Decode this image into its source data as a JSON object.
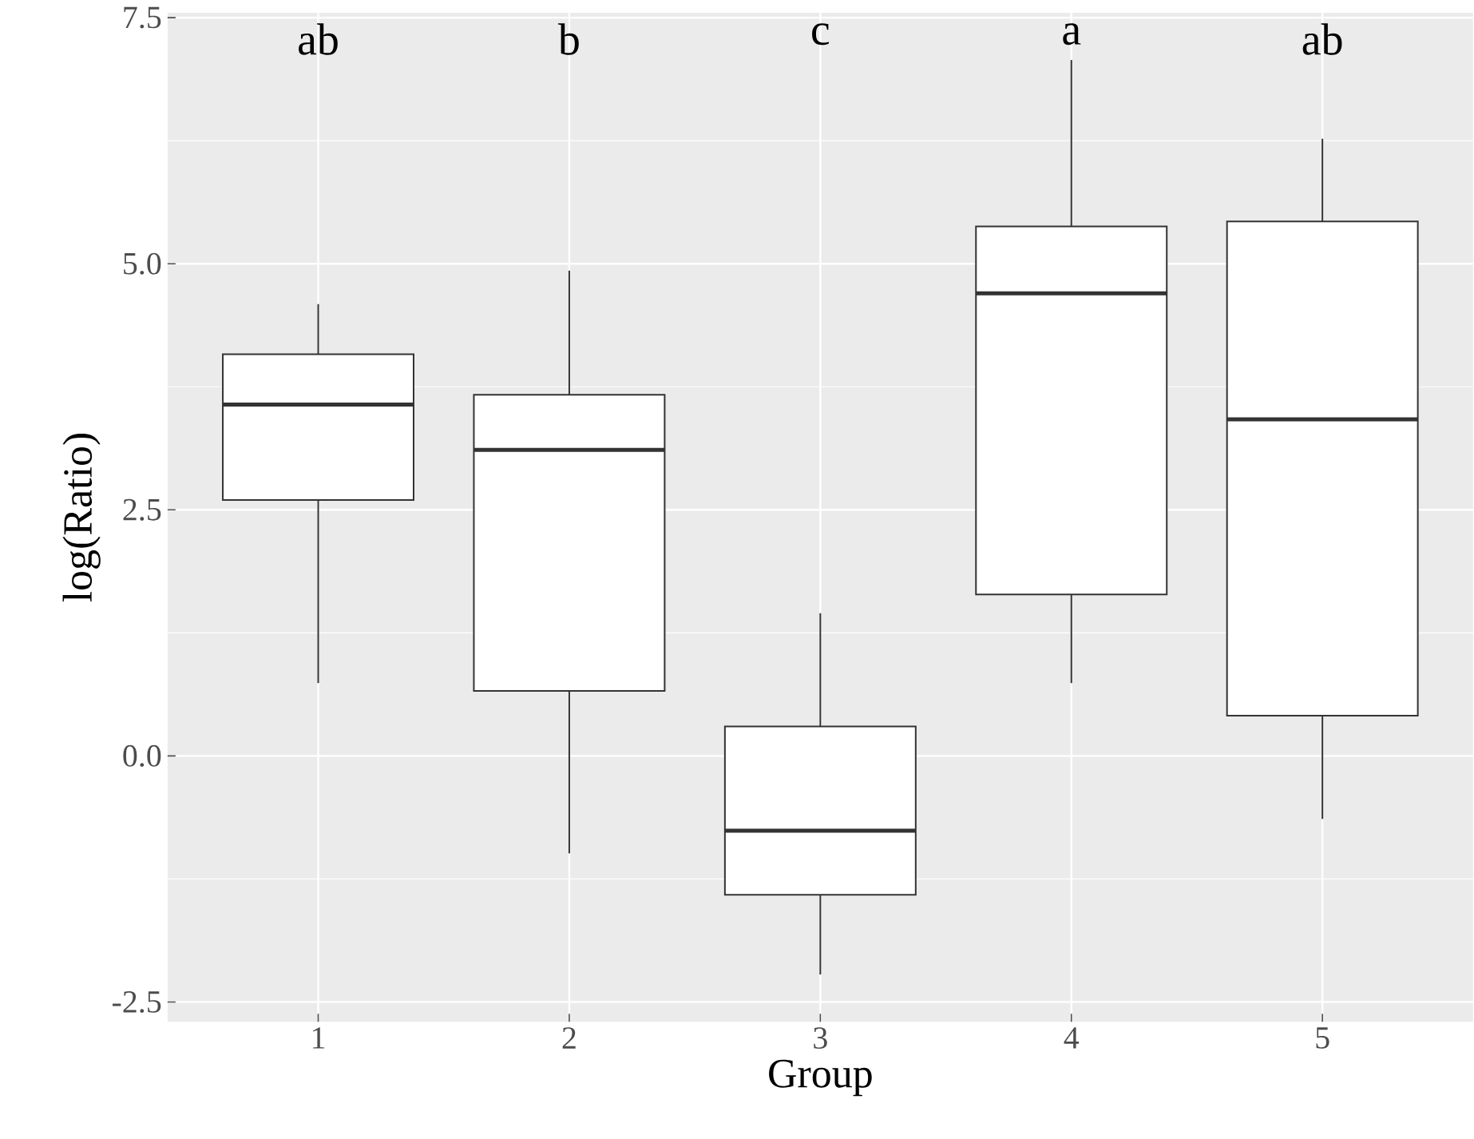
{
  "chart_data": {
    "type": "box",
    "xlabel": "Group",
    "ylabel": "log(Ratio)",
    "categories": [
      "1",
      "2",
      "3",
      "4",
      "5"
    ],
    "boxes": [
      {
        "low": 0.74,
        "q1": 2.6,
        "median": 3.57,
        "q3": 4.08,
        "high": 4.59
      },
      {
        "low": -0.99,
        "q1": 0.66,
        "median": 3.11,
        "q3": 3.67,
        "high": 4.93
      },
      {
        "low": -2.22,
        "q1": -1.41,
        "median": -0.76,
        "q3": 0.3,
        "high": 1.45
      },
      {
        "low": 0.74,
        "q1": 1.64,
        "median": 4.7,
        "q3": 5.38,
        "high": 7.07
      },
      {
        "low": -0.64,
        "q1": 0.41,
        "median": 3.42,
        "q3": 5.43,
        "high": 6.27
      }
    ],
    "ylim": [
      -2.7,
      7.55
    ],
    "yticks": [
      {
        "value": -2.5,
        "label": "-2.5"
      },
      {
        "value": 0,
        "label": "0.0"
      },
      {
        "value": 2.5,
        "label": "2.5"
      },
      {
        "value": 5,
        "label": "5.0"
      },
      {
        "value": 7.5,
        "label": "7.5"
      }
    ],
    "grid": true,
    "annotations": [
      "ab",
      "b",
      "c",
      "a",
      "ab"
    ]
  }
}
